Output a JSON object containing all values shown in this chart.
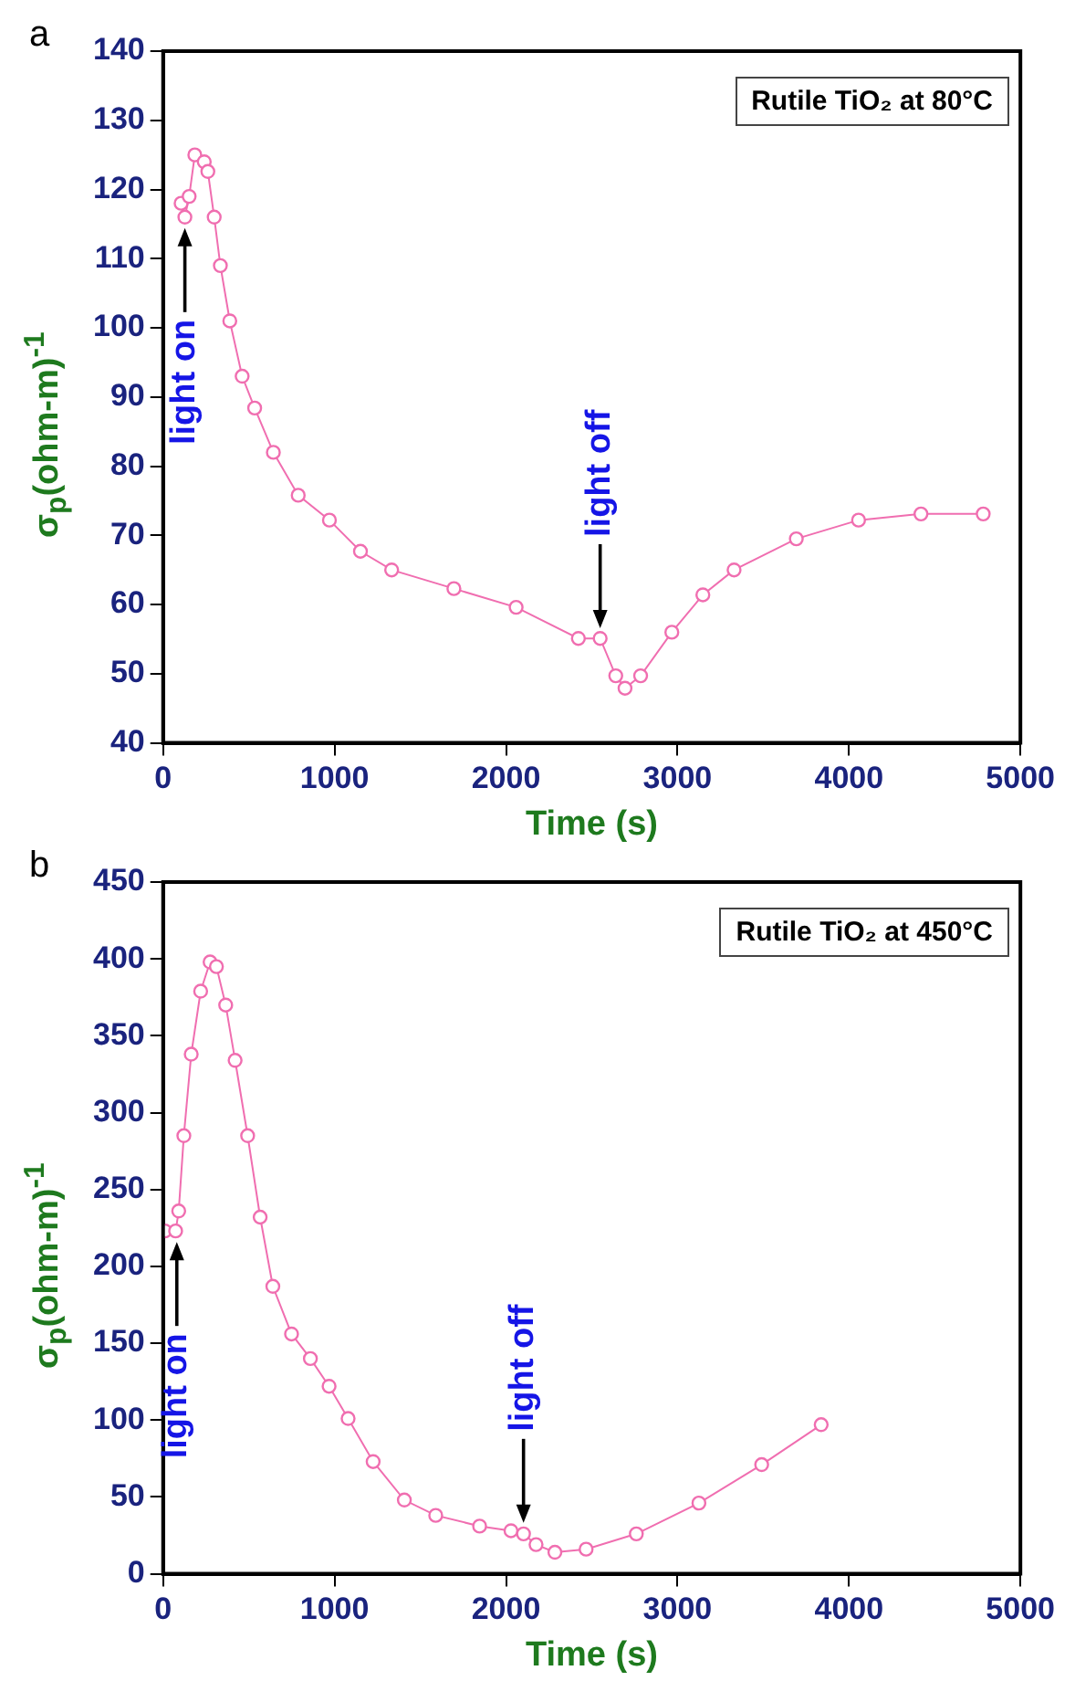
{
  "chart_data": [
    {
      "type": "line",
      "title": "a",
      "xlabel": "Time (s)",
      "ylabel": "σ$_{p}$(ohm-m)$^{-1}$",
      "marker": "circle",
      "grid": false,
      "legend": false,
      "xlim": [
        0,
        5000
      ],
      "xticks": [
        0,
        1000,
        2000,
        3000,
        4000,
        5000
      ],
      "ylim": [
        40,
        140
      ],
      "yticks": [
        40,
        50,
        60,
        70,
        80,
        90,
        100,
        110,
        120,
        130,
        140
      ],
      "annotations": [
        "Rutile TiO₂ at 80°C",
        {
          "text": "light on",
          "x": 127,
          "y": 116
        },
        {
          "text": "light off",
          "x": 2549,
          "y": 55
        }
      ],
      "series": [
        {
          "color": "#f06eb0",
          "x": [
            105,
            127,
            152,
            185,
            240,
            261,
            298,
            334,
            389,
            461,
            534,
            643,
            788,
            970,
            1151,
            1333,
            1696,
            2059,
            2422,
            2549,
            2640,
            2694,
            2785,
            2967,
            3148,
            3330,
            3693,
            4056,
            4420,
            4783
          ],
          "values": [
            118,
            116,
            119,
            125,
            124,
            122.6,
            116,
            109,
            101,
            93,
            88.4,
            82,
            75.8,
            72.2,
            67.7,
            65,
            62.3,
            59.6,
            55.1,
            55.1,
            49.7,
            47.9,
            49.7,
            56,
            61.4,
            65,
            69.5,
            72.2,
            73.1,
            73.1
          ]
        }
      ]
    },
    {
      "type": "line",
      "title": "b",
      "xlabel": "Time (s)",
      "ylabel": "σ$_{p}$(ohm-m)$^{-1}$",
      "marker": "circle",
      "grid": false,
      "legend": false,
      "xlim": [
        0,
        5000
      ],
      "xticks": [
        0,
        1000,
        2000,
        3000,
        4000,
        5000
      ],
      "ylim": [
        0,
        450
      ],
      "yticks": [
        0,
        50,
        100,
        150,
        200,
        250,
        300,
        350,
        400,
        450
      ],
      "annotations": [
        "Rutile TiO₂ at 450°C",
        {
          "text": "light on",
          "x": 80,
          "y": 223
        },
        {
          "text": "light off",
          "x": 2102,
          "y": 26
        }
      ],
      "series": [
        {
          "color": "#f06eb0",
          "x": [
            11,
            73,
            91,
            121,
            164,
            219,
            274,
            311,
            365,
            420,
            493,
            566,
            640,
            749,
            859,
            968,
            1079,
            1225,
            1407,
            1590,
            1846,
            2029,
            2102,
            2175,
            2285,
            2467,
            2760,
            3125,
            3491,
            3838
          ],
          "values": [
            223,
            223,
            236,
            285,
            338,
            379,
            398,
            395,
            370,
            334,
            285,
            232,
            187,
            156,
            140,
            122,
            101,
            73,
            48,
            38,
            31,
            28,
            26,
            19,
            14,
            16,
            26,
            46,
            71,
            97
          ]
        }
      ]
    }
  ]
}
